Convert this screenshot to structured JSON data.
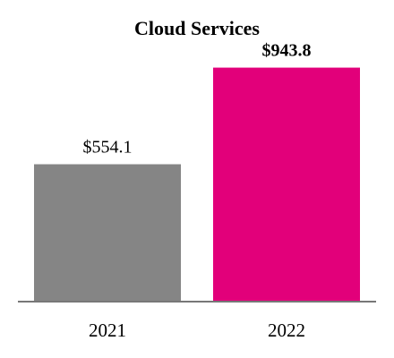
{
  "chart_data": {
    "type": "bar",
    "title": "Cloud Services",
    "categories": [
      "2021",
      "2022"
    ],
    "values": [
      554.1,
      943.8
    ],
    "value_labels": [
      "$554.1",
      "$943.8"
    ],
    "value_label_bold": [
      false,
      true
    ],
    "colors": [
      "#858585",
      "#e2007a"
    ],
    "xlabel": "",
    "ylabel": "",
    "ylim": [
      0,
      1000
    ],
    "grid": false,
    "legend": "none"
  },
  "colors": {
    "axis": "#777777"
  }
}
